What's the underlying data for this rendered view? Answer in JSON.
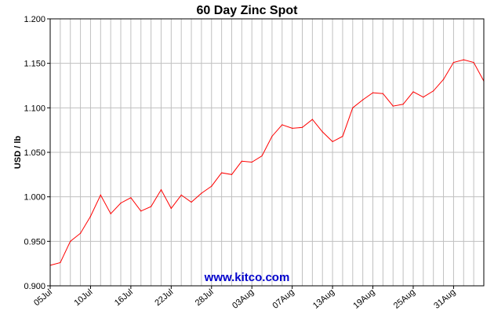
{
  "chart_data": {
    "type": "line",
    "title": "60 Day Zinc Spot",
    "xlabel": "",
    "ylabel": "USD / lb",
    "watermark": "www.kitco.com",
    "ylim": [
      0.9,
      1.2
    ],
    "yticks": [
      "0.900",
      "0.950",
      "1.000",
      "1.050",
      "1.100",
      "1.150",
      "1.200"
    ],
    "xtick_labels": [
      "05Jul",
      "10Jul",
      "16Jul",
      "22Jul",
      "28Jul",
      "03Aug",
      "07Aug",
      "13Aug",
      "19Aug",
      "25Aug",
      "31Aug"
    ],
    "xtick_index": [
      0,
      4,
      8,
      12,
      16,
      20,
      24,
      28,
      32,
      36,
      40
    ],
    "grid": true,
    "colors": {
      "line": "#ff0000",
      "grid": "#c0c0c0",
      "axis": "#000000",
      "watermark": "#0000cc"
    },
    "series": [
      {
        "values": [
          0.923,
          0.926,
          0.95,
          0.959,
          0.978,
          1.002,
          0.981,
          0.993,
          0.999,
          0.984,
          0.989,
          1.008,
          0.987,
          1.002,
          0.994,
          1.004,
          1.012,
          1.027,
          1.025,
          1.04,
          1.039,
          1.046,
          1.068,
          1.081,
          1.077,
          1.078,
          1.087,
          1.073,
          1.062,
          1.068,
          1.1,
          1.109,
          1.117,
          1.116,
          1.102,
          1.104,
          1.118,
          1.112,
          1.119,
          1.132,
          1.151,
          1.154,
          1.151,
          1.13
        ]
      }
    ]
  }
}
